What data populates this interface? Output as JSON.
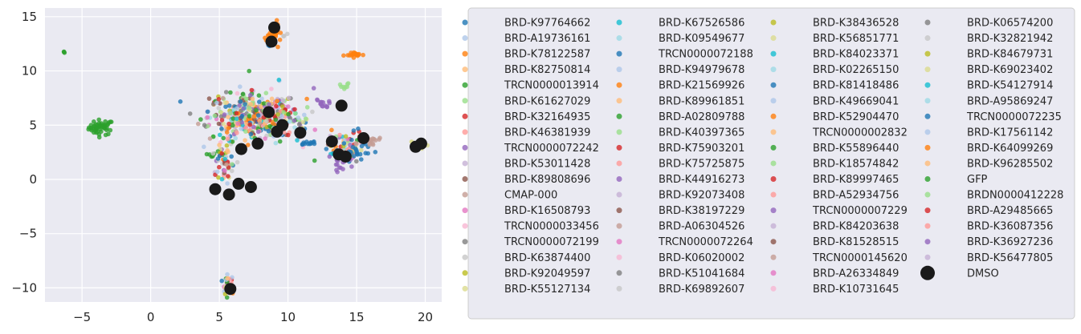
{
  "chart_data": {
    "type": "scatter",
    "xlim": [
      -7.7,
      21.2
    ],
    "ylim": [
      -11.3,
      15.8
    ],
    "xticks": [
      -5,
      0,
      5,
      10,
      15,
      20
    ],
    "yticks": [
      -10,
      -5,
      0,
      5,
      10,
      15
    ],
    "grid": true,
    "legend_placement": "right-outside",
    "legend_columns": 4,
    "background": "#eaeaf2",
    "series": [
      {
        "name": "BRD-K97764662",
        "color": "#1f77b4"
      },
      {
        "name": "BRD-A19736161",
        "color": "#aec7e8"
      },
      {
        "name": "BRD-K78122587",
        "color": "#ff7f0e"
      },
      {
        "name": "BRD-K82750814",
        "color": "#ffbb78"
      },
      {
        "name": "TRCN0000013914",
        "color": "#2ca02c"
      },
      {
        "name": "BRD-K61627029",
        "color": "#98df8a"
      },
      {
        "name": "BRD-K32164935",
        "color": "#d62728"
      },
      {
        "name": "BRD-K46381939",
        "color": "#ff9896"
      },
      {
        "name": "TRCN0000072242",
        "color": "#9467bd"
      },
      {
        "name": "BRD-K53011428",
        "color": "#c5b0d5"
      },
      {
        "name": "BRD-K89808696",
        "color": "#8c564b"
      },
      {
        "name": "CMAP-000",
        "color": "#c49c94"
      },
      {
        "name": "BRD-K16508793",
        "color": "#e377c2"
      },
      {
        "name": "TRCN0000033456",
        "color": "#f7b6d2"
      },
      {
        "name": "TRCN0000072199",
        "color": "#7f7f7f"
      },
      {
        "name": "BRD-K63874400",
        "color": "#c7c7c7"
      },
      {
        "name": "BRD-K92049597",
        "color": "#bcbd22"
      },
      {
        "name": "BRD-K55127134",
        "color": "#dbdb8d"
      },
      {
        "name": "BRD-K67526586",
        "color": "#17becf"
      },
      {
        "name": "BRD-K09549677",
        "color": "#9edae5"
      },
      {
        "name": "TRCN0000072188",
        "color": "#1f77b4"
      },
      {
        "name": "BRD-K94979678",
        "color": "#aec7e8"
      },
      {
        "name": "BRD-K21569926",
        "color": "#ff7f0e"
      },
      {
        "name": "BRD-K89961851",
        "color": "#ffbb78"
      },
      {
        "name": "BRD-A02809788",
        "color": "#2ca02c"
      },
      {
        "name": "BRD-K40397365",
        "color": "#98df8a"
      },
      {
        "name": "BRD-K75903201",
        "color": "#d62728"
      },
      {
        "name": "BRD-K75725875",
        "color": "#ff9896"
      },
      {
        "name": "BRD-K44916273",
        "color": "#9467bd"
      },
      {
        "name": "BRD-K92073408",
        "color": "#c5b0d5"
      },
      {
        "name": "BRD-K38197229",
        "color": "#8c564b"
      },
      {
        "name": "BRD-A06304526",
        "color": "#c49c94"
      },
      {
        "name": "TRCN0000072264",
        "color": "#e377c2"
      },
      {
        "name": "BRD-K06020002",
        "color": "#f7b6d2"
      },
      {
        "name": "BRD-K51041684",
        "color": "#7f7f7f"
      },
      {
        "name": "BRD-K69892607",
        "color": "#c7c7c7"
      },
      {
        "name": "BRD-K38436528",
        "color": "#bcbd22"
      },
      {
        "name": "BRD-K56851771",
        "color": "#dbdb8d"
      },
      {
        "name": "BRD-K84023371",
        "color": "#17becf"
      },
      {
        "name": "BRD-K02265150",
        "color": "#9edae5"
      },
      {
        "name": "BRD-K81418486",
        "color": "#1f77b4"
      },
      {
        "name": "BRD-K49669041",
        "color": "#aec7e8"
      },
      {
        "name": "BRD-K52904470",
        "color": "#ff7f0e"
      },
      {
        "name": "TRCN0000002832",
        "color": "#ffbb78"
      },
      {
        "name": "BRD-K55896440",
        "color": "#2ca02c"
      },
      {
        "name": "BRD-K18574842",
        "color": "#98df8a"
      },
      {
        "name": "BRD-K89997465",
        "color": "#d62728"
      },
      {
        "name": "BRD-A52934756",
        "color": "#ff9896"
      },
      {
        "name": "TRCN0000007229",
        "color": "#9467bd"
      },
      {
        "name": "BRD-K84203638",
        "color": "#c5b0d5"
      },
      {
        "name": "BRD-K81528515",
        "color": "#8c564b"
      },
      {
        "name": "TRCN0000145620",
        "color": "#c49c94"
      },
      {
        "name": "BRD-A26334849",
        "color": "#e377c2"
      },
      {
        "name": "BRD-K10731645",
        "color": "#f7b6d2"
      },
      {
        "name": "BRD-K06574200",
        "color": "#7f7f7f"
      },
      {
        "name": "BRD-K32821942",
        "color": "#c7c7c7"
      },
      {
        "name": "BRD-K84679731",
        "color": "#bcbd22"
      },
      {
        "name": "BRD-K69023402",
        "color": "#dbdb8d"
      },
      {
        "name": "BRD-K54127914",
        "color": "#17becf"
      },
      {
        "name": "BRD-A95869247",
        "color": "#9edae5"
      },
      {
        "name": "TRCN0000072235",
        "color": "#1f77b4"
      },
      {
        "name": "BRD-K17561142",
        "color": "#aec7e8"
      },
      {
        "name": "BRD-K64099269",
        "color": "#ff7f0e"
      },
      {
        "name": "BRD-K96285502",
        "color": "#ffbb78"
      },
      {
        "name": "GFP",
        "color": "#2ca02c"
      },
      {
        "name": "BRDN0000412228",
        "color": "#98df8a"
      },
      {
        "name": "BRD-A29485665",
        "color": "#d62728"
      },
      {
        "name": "BRD-K36087356",
        "color": "#ff9896"
      },
      {
        "name": "BRD-K36927236",
        "color": "#9467bd"
      },
      {
        "name": "BRD-K56477805",
        "color": "#c5b0d5"
      },
      {
        "name": "DMSO",
        "color": "#1a1a1a",
        "large": true
      }
    ],
    "clusters": [
      {
        "x": -6.3,
        "y": 11.7,
        "sx": 0.05,
        "sy": 0.05,
        "n": 3,
        "color": "#2ca02c"
      },
      {
        "x": -3.6,
        "y": 4.8,
        "sx": 0.45,
        "sy": 0.35,
        "n": 50,
        "color": "#2ca02c"
      },
      {
        "x": 4.4,
        "y": 2.2,
        "sx": 0.15,
        "sy": 0.1,
        "n": 6,
        "color": "#2ca02c"
      },
      {
        "x": 7.5,
        "y": 5.8,
        "sx": 1.6,
        "sy": 1.1,
        "n": 420,
        "color": "mix"
      },
      {
        "x": 5.3,
        "y": 1.8,
        "sx": 0.4,
        "sy": 1.2,
        "n": 60,
        "color": "mix"
      },
      {
        "x": 5.6,
        "y": -9.6,
        "sx": 0.2,
        "sy": 0.45,
        "n": 35,
        "color": "mix"
      },
      {
        "x": 9.0,
        "y": 13.6,
        "sx": 0.2,
        "sy": 0.5,
        "n": 30,
        "color": "#ff7f0e"
      },
      {
        "x": 9.6,
        "y": 13.3,
        "sx": 0.15,
        "sy": 0.1,
        "n": 4,
        "color": "#c7c7c7"
      },
      {
        "x": 8.7,
        "y": 12.5,
        "sx": 0.1,
        "sy": 0.2,
        "n": 5,
        "color": "#1f77b4"
      },
      {
        "x": 14.9,
        "y": 11.5,
        "sx": 0.3,
        "sy": 0.1,
        "n": 20,
        "color": "#ff7f0e"
      },
      {
        "x": 14.1,
        "y": 8.4,
        "sx": 0.15,
        "sy": 0.3,
        "n": 8,
        "color": "#98df8a"
      },
      {
        "x": 11.6,
        "y": 3.3,
        "sx": 0.3,
        "sy": 0.15,
        "n": 12,
        "color": "#1f77b4"
      },
      {
        "x": 14.2,
        "y": 3.0,
        "sx": 0.7,
        "sy": 0.7,
        "n": 70,
        "color": "mix"
      },
      {
        "x": 15.0,
        "y": 2.5,
        "sx": 0.6,
        "sy": 0.5,
        "n": 25,
        "color": "#1f77b4"
      },
      {
        "x": 14.0,
        "y": 1.5,
        "sx": 0.4,
        "sy": 0.5,
        "n": 20,
        "color": "#9467bd"
      },
      {
        "x": 16.0,
        "y": 3.6,
        "sx": 0.4,
        "sy": 0.3,
        "n": 15,
        "color": "#c49c94"
      },
      {
        "x": 19.5,
        "y": 3.1,
        "sx": 0.3,
        "sy": 0.2,
        "n": 10,
        "color": "#dbdb8d"
      },
      {
        "x": 12.5,
        "y": 7.0,
        "sx": 0.4,
        "sy": 0.4,
        "n": 15,
        "color": "#9467bd"
      },
      {
        "x": 9.2,
        "y": 5.0,
        "sx": 0.8,
        "sy": 0.5,
        "n": 40,
        "color": "mix"
      }
    ],
    "dmso_points": [
      [
        9.0,
        14.0
      ],
      [
        8.8,
        12.7
      ],
      [
        13.9,
        6.8
      ],
      [
        10.9,
        4.3
      ],
      [
        9.2,
        4.4
      ],
      [
        7.8,
        3.3
      ],
      [
        6.6,
        2.8
      ],
      [
        13.2,
        3.5
      ],
      [
        13.7,
        2.3
      ],
      [
        14.2,
        2.1
      ],
      [
        15.5,
        3.8
      ],
      [
        19.3,
        3.0
      ],
      [
        19.7,
        3.3
      ],
      [
        4.7,
        -0.9
      ],
      [
        5.7,
        -1.4
      ],
      [
        6.4,
        -0.4
      ],
      [
        7.3,
        -0.7
      ],
      [
        5.8,
        -10.1
      ],
      [
        9.6,
        5.0
      ],
      [
        8.6,
        6.2
      ]
    ]
  }
}
